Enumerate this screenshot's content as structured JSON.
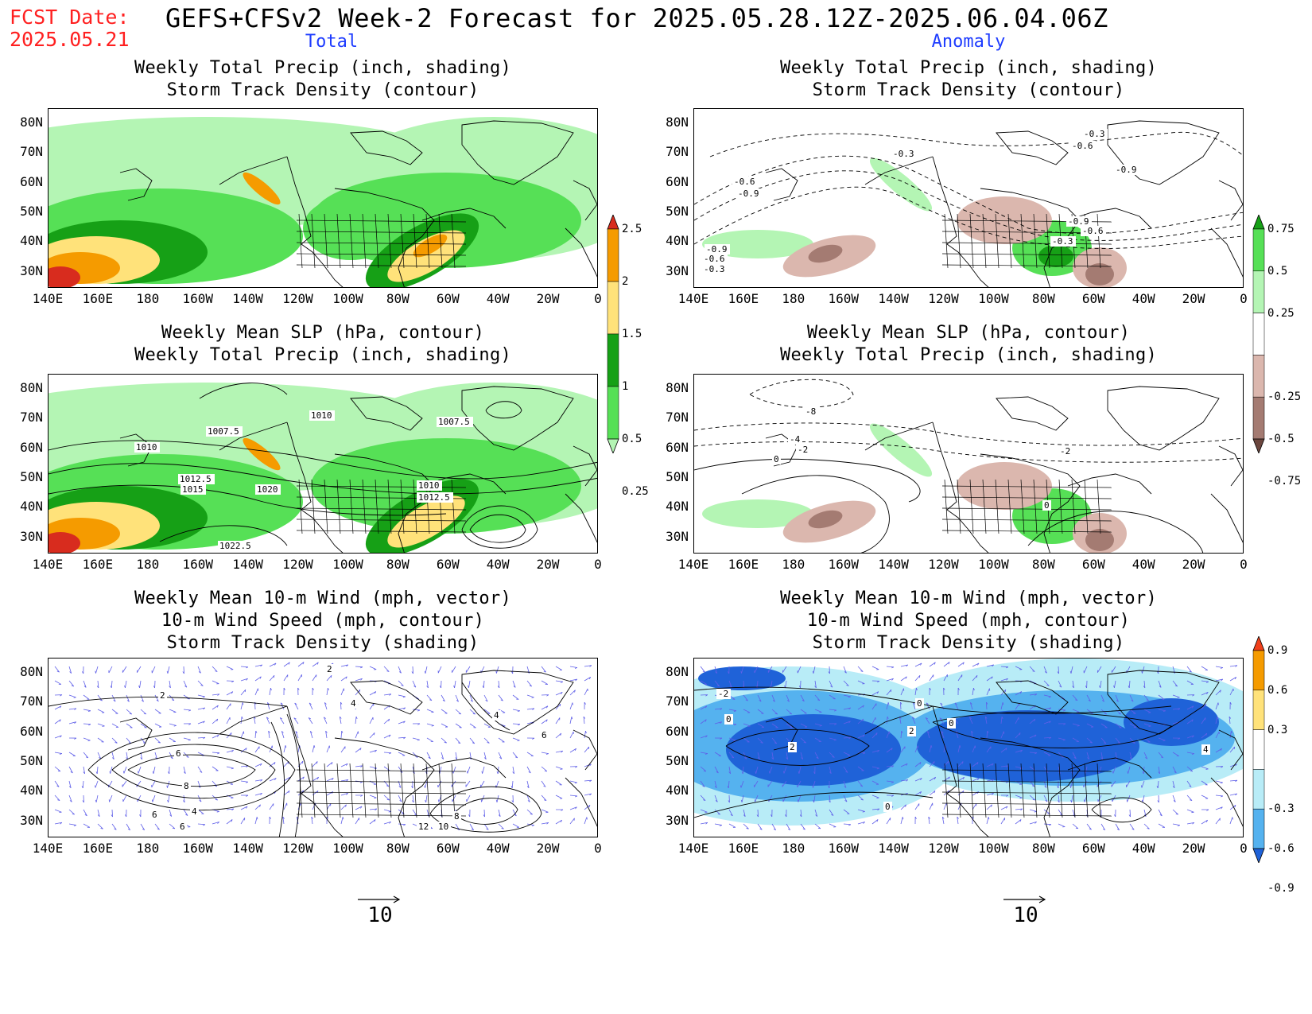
{
  "header": {
    "fcst_label": "FCST Date:",
    "fcst_date": "2025.05.21",
    "title": "GEFS+CFSv2 Week-2 Forecast for 2025.05.28.12Z-2025.06.04.06Z",
    "col_total": "Total",
    "col_anomaly": "Anomaly"
  },
  "axes": {
    "lat_labels": [
      "80N",
      "70N",
      "60N",
      "50N",
      "40N",
      "30N"
    ],
    "lon_labels": [
      "140E",
      "160E",
      "180",
      "160W",
      "140W",
      "120W",
      "100W",
      "80W",
      "60W",
      "40W",
      "20W",
      "0"
    ]
  },
  "panels": [
    {
      "id": "tl",
      "title_lines": [
        "Weekly Total Precip (inch, shading)",
        "Storm Track Density (contour)"
      ]
    },
    {
      "id": "tr",
      "title_lines": [
        "Weekly Total Precip (inch, shading)",
        "Storm Track Density (contour)"
      ],
      "contour_labels": [
        "-0.3",
        "-0.6",
        "-0.9",
        "-0.3",
        "-0.6",
        "-0.9",
        "-0.9",
        "-0.6",
        "-0.3",
        "-0.9",
        "-0.6",
        "-0.3"
      ]
    },
    {
      "id": "ml",
      "title_lines": [
        "Weekly Mean SLP (hPa, contour)",
        "Weekly Total Precip (inch, shading)"
      ],
      "contour_labels": [
        "1010",
        "1007.5",
        "1010",
        "1007.5",
        "1012.5",
        "1015",
        "1020",
        "1010",
        "1012.5",
        "1022.5"
      ]
    },
    {
      "id": "mr",
      "title_lines": [
        "Weekly Mean SLP (hPa, contour)",
        "Weekly Total Precip (inch, shading)"
      ],
      "contour_labels": [
        "-8",
        "-4",
        "-2",
        "0",
        "-2",
        "0"
      ]
    },
    {
      "id": "bl",
      "title_lines": [
        "Weekly Mean 10-m Wind (mph, vector)",
        "10-m Wind Speed (mph, contour)",
        "Storm Track Density (shading)"
      ],
      "contour_labels": [
        "2",
        "4",
        "6",
        "8",
        "6",
        "4",
        "2",
        "12",
        "10",
        "8",
        "6",
        "6",
        "4"
      ]
    },
    {
      "id": "br",
      "title_lines": [
        "Weekly Mean 10-m Wind (mph, vector)",
        "10-m Wind Speed (mph, contour)",
        "Storm Track Density (shading)"
      ],
      "contour_labels": [
        "-2",
        "0",
        "2",
        "0",
        "0",
        "4",
        "0",
        "2"
      ]
    }
  ],
  "colorbars": {
    "precip_total": {
      "labels": [
        "2.5",
        "2",
        "1.5",
        "1",
        "0.5",
        "0.25"
      ],
      "colors": [
        "#d82c1e",
        "#f59b00",
        "#ffe27a",
        "#16a016",
        "#56e056",
        "#b4f5b4"
      ]
    },
    "precip_anom": {
      "labels": [
        "0.75",
        "0.5",
        "0.25",
        "-0.25",
        "-0.5",
        "-0.75"
      ],
      "colors": [
        "#16a016",
        "#56e056",
        "#b4f5b4",
        "#ffffff",
        "#dbb7ae",
        "#a47b72",
        "#6b463e"
      ]
    },
    "storm_track": {
      "labels": [
        "0.9",
        "0.6",
        "0.3",
        "-0.3",
        "-0.6",
        "-0.9"
      ],
      "colors": [
        "#f0401a",
        "#f59b00",
        "#ffe27a",
        "#ffffff",
        "#b8ecf7",
        "#55b2ef",
        "#1f62d8"
      ]
    }
  },
  "vector_reference": {
    "label": "10"
  },
  "colors": {
    "fcst": "#ff2020",
    "column_heading": "#1f3dff",
    "vector": "#6060e8"
  }
}
